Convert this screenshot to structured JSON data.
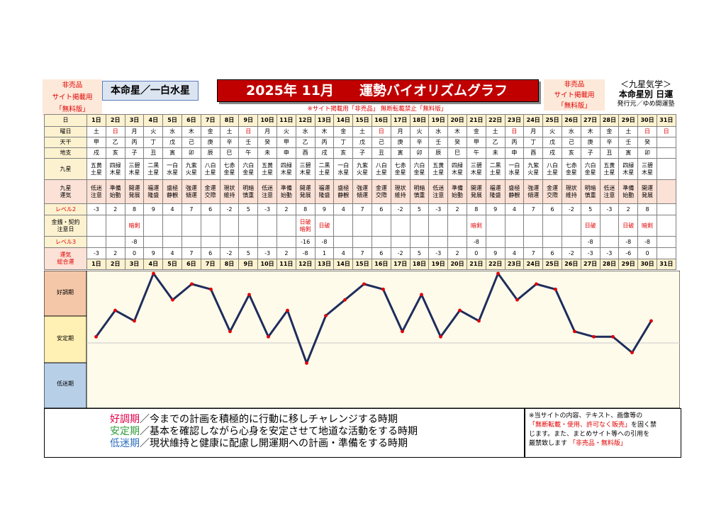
{
  "header": {
    "free_badge": [
      "非売品",
      "サイト掲載用",
      "「無料版」"
    ],
    "honmei": "本命星／一白水星",
    "title_year": "2025年 11月",
    "title_main": "運勢バイオリズムグラフ",
    "notice": "※サイト掲載用「非売品」 無断転載禁止「無料版」",
    "free_badge2": [
      "非売品",
      "サイト掲載用",
      "「無料版」"
    ],
    "kyusei": [
      "＜九星気学＞",
      "本命星別 日運",
      "発行元／ゆめ開運塾"
    ]
  },
  "row_labels": {
    "day": "日",
    "weekday": "曜日",
    "tenkan": "天干",
    "chishi": "地支",
    "kyusei": "九星",
    "unki": "九星\n運気",
    "level2": "レベル2",
    "notes": "金銭・契約\n注意日",
    "level3": "レベル3",
    "total": "運気\n総合運"
  },
  "days": [
    "1日",
    "2日",
    "3日",
    "4日",
    "5日",
    "6日",
    "7日",
    "8日",
    "9日",
    "10日",
    "11日",
    "12日",
    "13日",
    "14日",
    "15日",
    "16日",
    "17日",
    "18日",
    "19日",
    "20日",
    "21日",
    "22日",
    "23日",
    "24日",
    "25日",
    "26日",
    "27日",
    "28日",
    "29日",
    "30日",
    "31日"
  ],
  "weekdays": [
    "土",
    "日",
    "月",
    "火",
    "水",
    "木",
    "金",
    "土",
    "日",
    "月",
    "火",
    "水",
    "木",
    "金",
    "土",
    "日",
    "月",
    "火",
    "水",
    "木",
    "金",
    "土",
    "日",
    "月",
    "火",
    "水",
    "木",
    "金",
    "土",
    "日",
    "日"
  ],
  "tenkan": [
    "甲",
    "乙",
    "丙",
    "丁",
    "戊",
    "己",
    "庚",
    "辛",
    "壬",
    "癸",
    "甲",
    "乙",
    "丙",
    "丁",
    "戊",
    "己",
    "庚",
    "辛",
    "壬",
    "癸",
    "甲",
    "乙",
    "丙",
    "丁",
    "戊",
    "己",
    "庚",
    "辛",
    "壬",
    "癸",
    ""
  ],
  "chishi": [
    "戌",
    "亥",
    "子",
    "丑",
    "寅",
    "卯",
    "辰",
    "巳",
    "午",
    "未",
    "申",
    "酉",
    "戌",
    "亥",
    "子",
    "丑",
    "寅",
    "卯",
    "辰",
    "巳",
    "午",
    "未",
    "申",
    "酉",
    "戌",
    "亥",
    "子",
    "丑",
    "寅",
    "卯",
    ""
  ],
  "kyusei": [
    "五黄\n土星",
    "四緑\n木星",
    "三碧\n木星",
    "二黒\n土星",
    "一白\n水星",
    "九紫\n火星",
    "八白\n土星",
    "七赤\n金星",
    "六白\n金星",
    "五黄\n土星",
    "四緑\n木星",
    "三碧\n木星",
    "二黒\n土星",
    "一白\n水星",
    "九紫\n火星",
    "八白\n土星",
    "七赤\n金星",
    "六白\n金星",
    "五黄\n土星",
    "四緑\n木星",
    "三碧\n木星",
    "二黒\n土星",
    "一白\n水星",
    "九紫\n火星",
    "八白\n土星",
    "七赤\n金星",
    "六白\n金星",
    "五黄\n土星",
    "四緑\n木星",
    "三碧\n木星",
    ""
  ],
  "unki": [
    "低迷\n注意",
    "準備\n始動",
    "開運\n発展",
    "福運\n隆盛",
    "盛極\n静観",
    "強運\n傾運",
    "金運\n交際",
    "現状\n維持",
    "明暗\n慎重",
    "低迷\n注意",
    "準備\n始動",
    "開運\n発展",
    "福運\n隆盛",
    "盛極\n静観",
    "強運\n傾運",
    "金運\n交際",
    "現状\n維持",
    "明暗\n慎重",
    "低迷\n注意",
    "準備\n始動",
    "開運\n発展",
    "福運\n隆盛",
    "盛極\n静観",
    "強運\n傾運",
    "金運\n交際",
    "現状\n維持",
    "明暗\n慎重",
    "低迷\n注意",
    "準備\n始動",
    "開運\n発展",
    ""
  ],
  "level2": [
    "-3",
    "2",
    "8",
    "9",
    "4",
    "7",
    "6",
    "-2",
    "5",
    "-3",
    "2",
    "8",
    "9",
    "4",
    "7",
    "6",
    "-2",
    "5",
    "-3",
    "2",
    "8",
    "9",
    "4",
    "7",
    "6",
    "-2",
    "5",
    "-3",
    "2",
    "8",
    ""
  ],
  "notes": [
    "",
    "",
    "暗剣",
    "",
    "",
    "",
    "",
    "",
    "",
    "",
    "",
    "日破\n暗剣",
    "日破",
    "",
    "",
    "",
    "",
    "",
    "",
    "",
    "暗剣",
    "",
    "",
    "",
    "",
    "",
    "日破",
    "",
    "日破",
    "暗剣",
    ""
  ],
  "level3": [
    "",
    "",
    "-8",
    "",
    "",
    "",
    "",
    "",
    "",
    "",
    "",
    "-16",
    "-8",
    "",
    "",
    "",
    "",
    "",
    "",
    "",
    "-8",
    "",
    "",
    "",
    "",
    "",
    "-8",
    "",
    "-8",
    "-8",
    ""
  ],
  "total": [
    "-3",
    "2",
    "0",
    "9",
    "4",
    "7",
    "6",
    "-2",
    "5",
    "-3",
    "2",
    "-8",
    "1",
    "4",
    "7",
    "6",
    "-2",
    "5",
    "-3",
    "2",
    "0",
    "9",
    "4",
    "7",
    "6",
    "-2",
    "-3",
    "-3",
    "-6",
    "0",
    ""
  ],
  "chart_data": {
    "type": "line",
    "x": [
      1,
      2,
      3,
      4,
      5,
      6,
      7,
      8,
      9,
      10,
      11,
      12,
      13,
      14,
      15,
      16,
      17,
      18,
      19,
      20,
      21,
      22,
      23,
      24,
      25,
      26,
      27,
      28,
      29,
      30
    ],
    "y": [
      -3,
      2,
      0,
      9,
      4,
      7,
      6,
      -2,
      5,
      -3,
      2,
      -8,
      1,
      4,
      7,
      6,
      -2,
      5,
      -3,
      2,
      0,
      9,
      4,
      7,
      6,
      -2,
      -3,
      -3,
      -6,
      0
    ],
    "ylim": [
      -16,
      9
    ],
    "zones": [
      "好調期",
      "安定期",
      "低迷期"
    ],
    "line_color": "#1f2d5c",
    "marker_color": "#e00000"
  },
  "legend": [
    {
      "term": "好調期",
      "desc": "／今までの計画を積極的に行動に移しチャレンジする時期",
      "color": "#e0004a"
    },
    {
      "term": "安定期",
      "desc": "／基本を確認しながら心身を安定させて地道な活動をする時期",
      "color": "#2e9c3a"
    },
    {
      "term": "低迷期",
      "desc": "／現状維持と健康に配慮し開運期への計画・準備をする時期",
      "color": "#2f6fc0"
    }
  ],
  "copyright": {
    "line1": "※当サイトの内容、テキスト、画像等の",
    "line2_red": "「無断転載・使用、許可なく販売」",
    "line2_rest": "を固く禁",
    "line3": "じます。また、まとめサイト等への引用を",
    "line4": "厳禁致します",
    "line4_red": "「非売品・無料版」"
  }
}
